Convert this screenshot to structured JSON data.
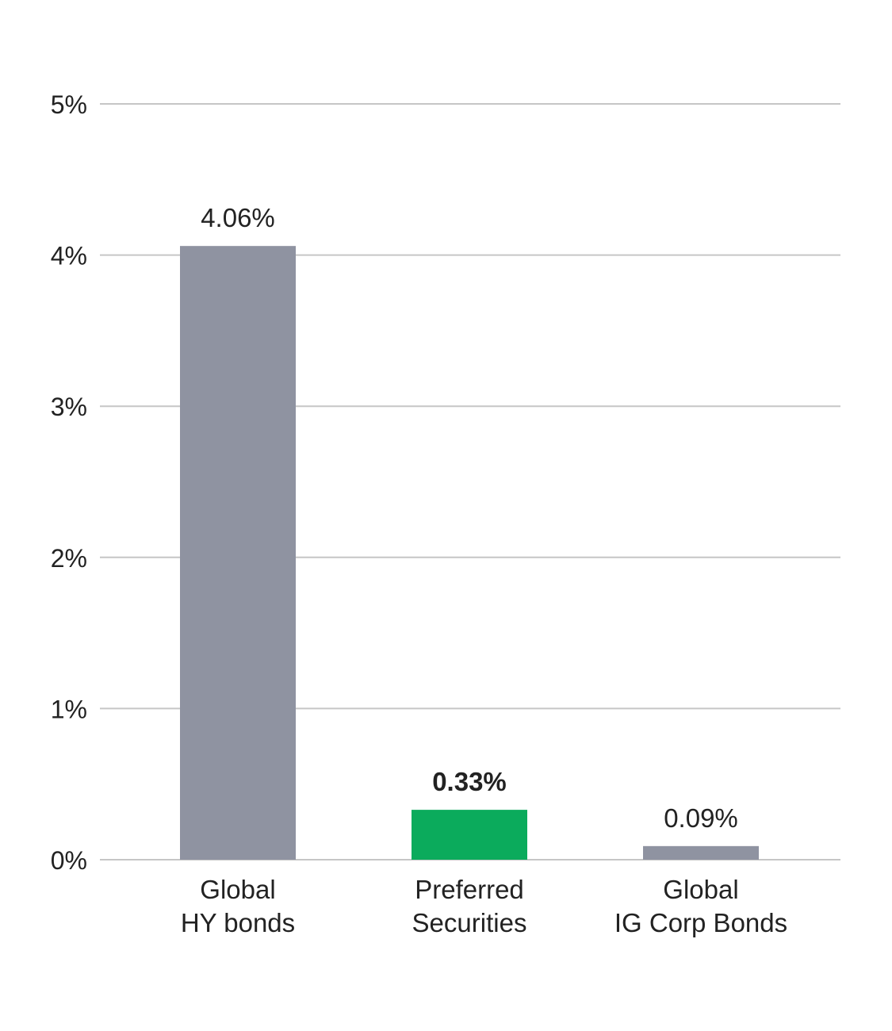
{
  "chart_data": {
    "type": "bar",
    "categories": [
      [
        "Global",
        "HY bonds"
      ],
      [
        "Preferred",
        "Securities"
      ],
      [
        "Global",
        "IG Corp Bonds"
      ]
    ],
    "values": [
      4.06,
      0.33,
      0.09
    ],
    "data_labels": [
      "4.06%",
      "0.33%",
      "0.09%"
    ],
    "highlight_index": 1,
    "colors": [
      "#8f93a1",
      "#0bab5c",
      "#8f93a1"
    ],
    "ylim": [
      0,
      5
    ],
    "yticks": [
      0,
      1,
      2,
      3,
      4,
      5
    ],
    "ytick_labels": [
      "0%",
      "1%",
      "2%",
      "3%",
      "4%",
      "5%"
    ],
    "grid": true,
    "title": "",
    "xlabel": "",
    "ylabel": ""
  }
}
